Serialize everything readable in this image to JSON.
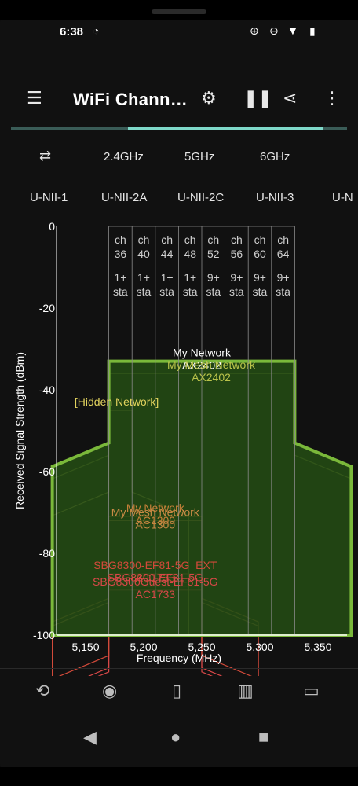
{
  "status": {
    "time": "6:38",
    "icons": [
      "app-notification-icon",
      "alarm-icon",
      "dnd-icon",
      "wifi-icon",
      "battery-icon"
    ]
  },
  "app_bar": {
    "title": "WiFi Chann…",
    "icons": [
      "menu-icon",
      "filter-icon",
      "pause-icon",
      "share-icon",
      "more-vert-icon"
    ]
  },
  "tabs": {
    "swap_icon": "swap-icon",
    "bands": [
      "2.4GHz",
      "5GHz",
      "6GHz"
    ],
    "selected_band": "5GHz",
    "sub_bands": [
      "U-NII-1",
      "U-NII-2A",
      "U-NII-2C",
      "U-NII-3",
      "U-N"
    ]
  },
  "chart_data": {
    "type": "area",
    "xlabel": "Frequency (MHz)",
    "ylabel": "Received Signal Strength (dBm)",
    "xlim": [
      5125,
      5375
    ],
    "ylim": [
      -100,
      0
    ],
    "x_ticks": [
      "5,150",
      "5,200",
      "5,250",
      "5,300",
      "5,350"
    ],
    "y_ticks": [
      "0",
      "-20",
      "-40",
      "-60",
      "-80",
      "-100"
    ],
    "channels": [
      {
        "ch": "ch 36",
        "sta": "1+ sta"
      },
      {
        "ch": "ch 40",
        "sta": "1+ sta"
      },
      {
        "ch": "ch 44",
        "sta": "1+ sta"
      },
      {
        "ch": "ch 48",
        "sta": "1+ sta"
      },
      {
        "ch": "ch 52",
        "sta": "9+ sta"
      },
      {
        "ch": "ch 56",
        "sta": "9+ sta"
      },
      {
        "ch": "ch 60",
        "sta": "9+ sta"
      },
      {
        "ch": "ch 64",
        "sta": "9+ sta"
      }
    ],
    "networks": [
      {
        "name": "My Network",
        "standard": "AX2402",
        "signal": -33,
        "freq_start": 5170,
        "freq_end": 5330,
        "color": "#7ab83a"
      },
      {
        "name": "My Mesh Network",
        "standard": "AX2402",
        "signal": -36,
        "freq_start": 5170,
        "freq_end": 5330,
        "color": "#b9c24a"
      },
      {
        "name": "[Hidden Network]",
        "standard": "",
        "signal": -45,
        "freq_start": 5170,
        "freq_end": 5190,
        "color": "#e2d35e"
      },
      {
        "name": "My Network",
        "standard": "AC1300",
        "signal": -71,
        "freq_start": 5170,
        "freq_end": 5250,
        "color": "#c9823a"
      },
      {
        "name": "My Mesh Network",
        "standard": "AC1300",
        "signal": -72,
        "freq_start": 5170,
        "freq_end": 5250,
        "color": "#c88a45"
      },
      {
        "name": "SBG8300-EF81-5G_EXT",
        "standard": "AC1733",
        "signal": -85,
        "freq_start": 5170,
        "freq_end": 5250,
        "color": "#d24a3a"
      },
      {
        "name": "SBG8300-EF81-5G",
        "standard": "",
        "signal": -88,
        "freq_start": 5170,
        "freq_end": 5250,
        "color": "#d84848"
      },
      {
        "name": "SBG8300Guest-EF81-5G",
        "standard": "AC1733",
        "signal": -89,
        "freq_start": 5170,
        "freq_end": 5250,
        "color": "#d84848"
      }
    ],
    "grid": true,
    "colors": {
      "background": "#111111",
      "axis": "#ffffff",
      "grid": "#8a8a8a"
    }
  },
  "bottom_nav": {
    "icons": [
      "channel-graph-icon",
      "signal-meter-icon",
      "access-point-icon",
      "channel-rating-icon",
      "vendors-icon"
    ]
  },
  "system_nav": {
    "icons": [
      "back-icon",
      "home-icon",
      "recents-icon"
    ]
  }
}
